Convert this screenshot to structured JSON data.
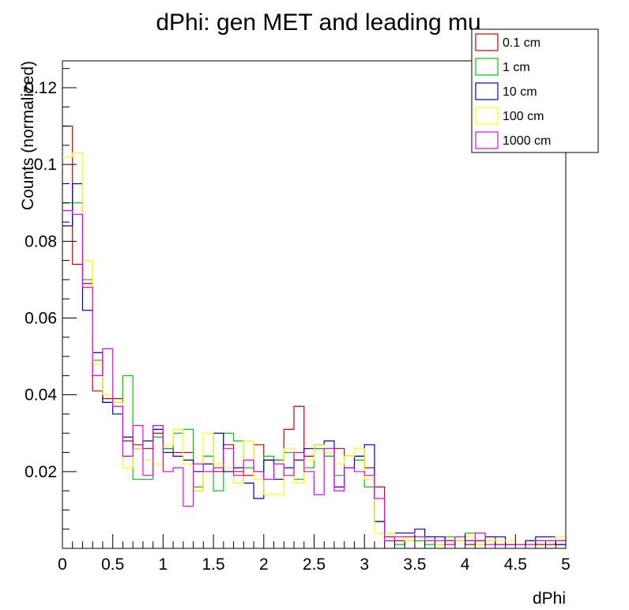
{
  "chart_data": {
    "type": "histogram-step",
    "title": "dPhi: gen MET and leading mu",
    "xlabel": "dPhi",
    "ylabel": "Counts (normalized)",
    "xlim": [
      0,
      5
    ],
    "ylim": [
      0,
      0.127
    ],
    "x_ticks": [
      {
        "v": 0,
        "label": "0"
      },
      {
        "v": 0.5,
        "label": "0.5"
      },
      {
        "v": 1,
        "label": "1"
      },
      {
        "v": 1.5,
        "label": "1.5"
      },
      {
        "v": 2,
        "label": "2"
      },
      {
        "v": 2.5,
        "label": "2.5"
      },
      {
        "v": 3,
        "label": "3"
      },
      {
        "v": 3.5,
        "label": "3.5"
      },
      {
        "v": 4,
        "label": "4"
      },
      {
        "v": 4.5,
        "label": "4.5"
      },
      {
        "v": 5,
        "label": "5"
      }
    ],
    "y_ticks": [
      {
        "v": 0.02,
        "label": "0.02"
      },
      {
        "v": 0.04,
        "label": "0.04"
      },
      {
        "v": 0.06,
        "label": "0.06"
      },
      {
        "v": 0.08,
        "label": "0.08"
      },
      {
        "v": 0.1,
        "label": "0.1"
      },
      {
        "v": 0.12,
        "label": "0.12"
      }
    ],
    "bin_width": 0.1,
    "legend_position": "top-right",
    "series": [
      {
        "name": "0.1 cm",
        "color": "#cc0000",
        "values": [
          0.11,
          0.074,
          0.069,
          0.041,
          0.039,
          0.039,
          0.028,
          0.027,
          0.026,
          0.03,
          0.026,
          0.025,
          0.025,
          0.015,
          0.024,
          0.02,
          0.027,
          0.02,
          0.019,
          0.027,
          0.023,
          0.023,
          0.031,
          0.037,
          0.024,
          0.026,
          0.024,
          0.026,
          0.024,
          0.024,
          0.021,
          0.016,
          0.003,
          0.002,
          0.003,
          0.003,
          0.003,
          0.001,
          0.002,
          0.002,
          0.001,
          0.002,
          0.003,
          0.001,
          0.001,
          0.001,
          0.001,
          0.001,
          0.001,
          0.001
        ]
      },
      {
        "name": "1 cm",
        "color": "#00cc00",
        "values": [
          0.09,
          0.09,
          0.07,
          0.049,
          0.038,
          0.038,
          0.045,
          0.018,
          0.018,
          0.029,
          0.026,
          0.03,
          0.031,
          0.016,
          0.024,
          0.015,
          0.03,
          0.028,
          0.021,
          0.02,
          0.024,
          0.023,
          0.025,
          0.018,
          0.021,
          0.026,
          0.024,
          0.019,
          0.024,
          0.023,
          0.016,
          0.007,
          0.002,
          0.001,
          0.002,
          0.002,
          0.001,
          0.001,
          0.003,
          0.002,
          0.004,
          0.004,
          0.002,
          0.001,
          0.001,
          0.001,
          0.001,
          0.002,
          0.002,
          0.002
        ]
      },
      {
        "name": "10 cm",
        "color": "#0000cc",
        "values": [
          0.084,
          0.095,
          0.062,
          0.051,
          0.038,
          0.035,
          0.029,
          0.026,
          0.028,
          0.031,
          0.025,
          0.024,
          0.023,
          0.02,
          0.022,
          0.03,
          0.02,
          0.021,
          0.017,
          0.013,
          0.023,
          0.018,
          0.021,
          0.023,
          0.026,
          0.027,
          0.028,
          0.016,
          0.021,
          0.024,
          0.027,
          0.007,
          0.004,
          0.004,
          0.004,
          0.005,
          0.003,
          0.003,
          0.001,
          0.002,
          0.002,
          0.001,
          0.003,
          0.003,
          0.001,
          0.001,
          0.002,
          0.003,
          0.003,
          0.001
        ]
      },
      {
        "name": "100 cm",
        "color": "#ffff00",
        "values": [
          0.102,
          0.103,
          0.075,
          0.048,
          0.04,
          0.038,
          0.021,
          0.026,
          0.023,
          0.022,
          0.027,
          0.031,
          0.022,
          0.015,
          0.03,
          0.022,
          0.021,
          0.017,
          0.028,
          0.018,
          0.014,
          0.014,
          0.026,
          0.017,
          0.023,
          0.027,
          0.025,
          0.022,
          0.024,
          0.026,
          0.018,
          0.004,
          0.004,
          0.003,
          0.002,
          0.003,
          0.002,
          0.001,
          0.001,
          0.002,
          0.003,
          0.001,
          0.002,
          0.002,
          0.002,
          0.001,
          0.001,
          0.002,
          0.002,
          0.003
        ]
      },
      {
        "name": "1000 cm",
        "color": "#ee00ee",
        "values": [
          0.088,
          0.087,
          0.068,
          0.045,
          0.052,
          0.037,
          0.024,
          0.032,
          0.019,
          0.032,
          0.02,
          0.021,
          0.011,
          0.022,
          0.02,
          0.021,
          0.026,
          0.019,
          0.023,
          0.02,
          0.018,
          0.022,
          0.019,
          0.025,
          0.02,
          0.014,
          0.026,
          0.015,
          0.021,
          0.02,
          0.019,
          0.013,
          0.002,
          0.003,
          0.003,
          0.003,
          0.002,
          0.002,
          0.001,
          0.003,
          0.002,
          0.004,
          0.001,
          0.001,
          0.001,
          0.001,
          0.001,
          0.002,
          0.002,
          0.002
        ]
      }
    ]
  }
}
